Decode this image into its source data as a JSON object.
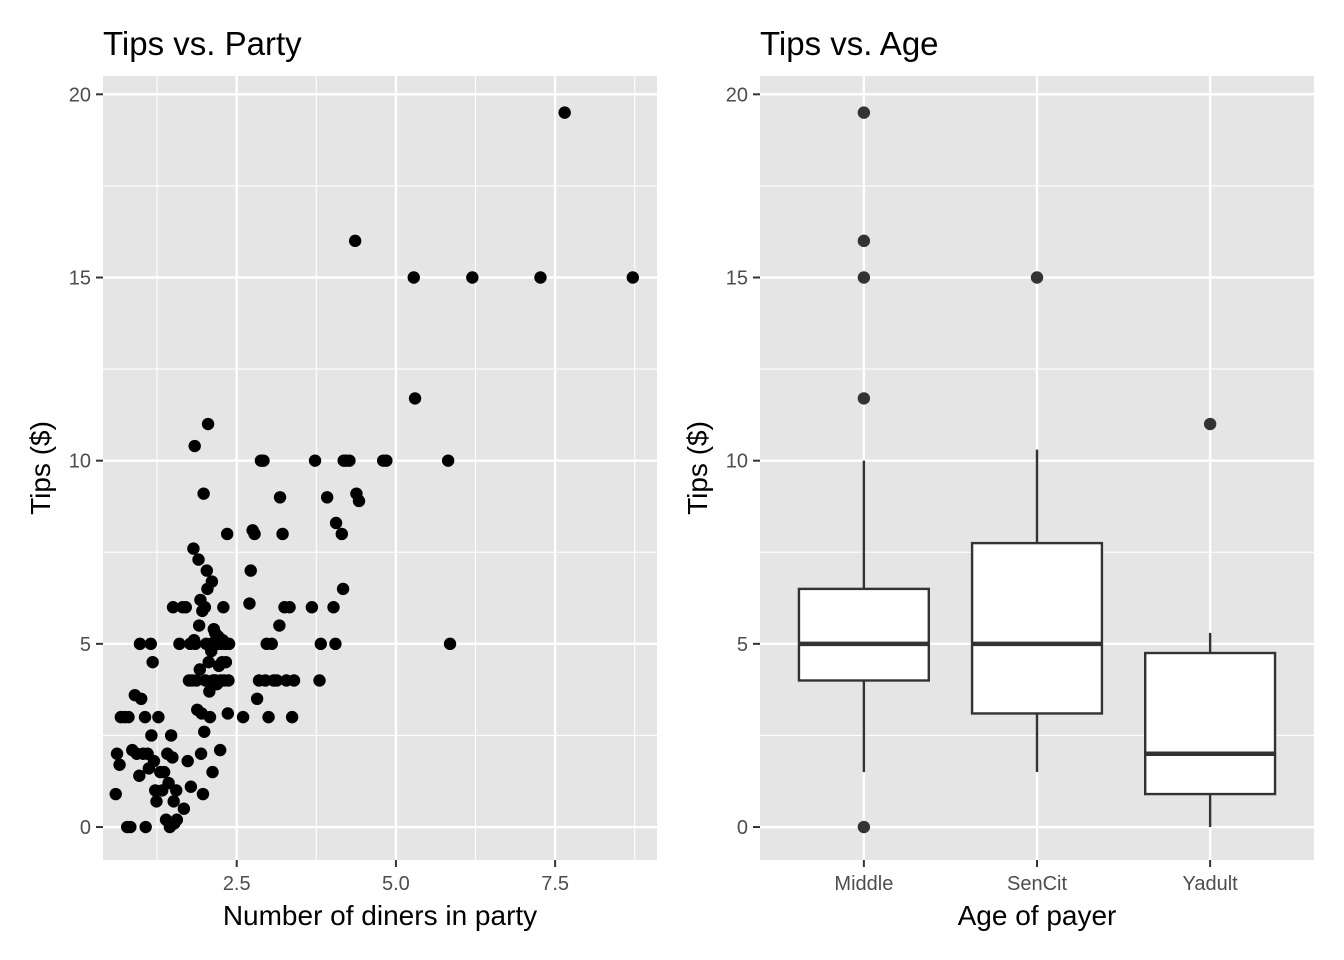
{
  "chart_data": [
    {
      "type": "scatter",
      "title": "Tips vs. Party",
      "xlabel": "Number of diners in party",
      "ylabel": "Tips ($)",
      "xlim": [
        0.4,
        9.1
      ],
      "ylim": [
        -0.9,
        20.5
      ],
      "xticks": [
        2.5,
        5.0,
        7.5
      ],
      "xtick_labels": [
        "2.5",
        "5.0",
        "7.5"
      ],
      "yticks": [
        0,
        5,
        10,
        15,
        20
      ],
      "ytick_labels": [
        "0",
        "5",
        "10",
        "15",
        "20"
      ],
      "grid": true,
      "legend": "none",
      "points": [
        [
          0.6,
          0.9
        ],
        [
          0.62,
          2.0
        ],
        [
          0.66,
          1.7
        ],
        [
          0.68,
          3.0
        ],
        [
          0.74,
          3.0
        ],
        [
          0.78,
          0.0
        ],
        [
          0.8,
          3.0
        ],
        [
          0.83,
          0.0
        ],
        [
          0.86,
          2.1
        ],
        [
          0.9,
          3.6
        ],
        [
          0.93,
          2.0
        ],
        [
          0.97,
          1.4
        ],
        [
          0.98,
          5.0
        ],
        [
          1.0,
          3.5
        ],
        [
          1.03,
          2.0
        ],
        [
          1.06,
          3.0
        ],
        [
          1.07,
          0.0
        ],
        [
          1.1,
          2.0
        ],
        [
          1.12,
          1.6
        ],
        [
          1.15,
          5.0
        ],
        [
          1.16,
          2.5
        ],
        [
          1.18,
          4.5
        ],
        [
          1.2,
          1.8
        ],
        [
          1.22,
          1.0
        ],
        [
          1.24,
          0.7
        ],
        [
          1.27,
          3.0
        ],
        [
          1.3,
          1.5
        ],
        [
          1.33,
          1.0
        ],
        [
          1.36,
          1.5
        ],
        [
          1.39,
          0.2
        ],
        [
          1.41,
          2.0
        ],
        [
          1.43,
          1.2
        ],
        [
          1.45,
          0.0
        ],
        [
          1.47,
          2.5
        ],
        [
          1.49,
          1.9
        ],
        [
          1.5,
          6.0
        ],
        [
          1.51,
          0.7
        ],
        [
          1.52,
          0.1
        ],
        [
          1.55,
          1.0
        ],
        [
          1.56,
          0.2
        ],
        [
          1.6,
          5.0
        ],
        [
          1.65,
          6.0
        ],
        [
          1.67,
          0.5
        ],
        [
          1.7,
          6.0
        ],
        [
          1.73,
          1.8
        ],
        [
          1.75,
          4.0
        ],
        [
          1.77,
          5.0
        ],
        [
          1.78,
          1.1
        ],
        [
          1.8,
          4.0
        ],
        [
          1.82,
          7.6
        ],
        [
          1.83,
          5.1
        ],
        [
          1.84,
          10.4
        ],
        [
          1.85,
          5.0
        ],
        [
          1.87,
          4.0
        ],
        [
          1.88,
          3.2
        ],
        [
          1.9,
          7.3
        ],
        [
          1.91,
          5.5
        ],
        [
          1.92,
          4.3
        ],
        [
          1.93,
          6.2
        ],
        [
          1.94,
          2.0
        ],
        [
          1.95,
          3.1
        ],
        [
          1.96,
          5.9
        ],
        [
          1.97,
          0.9
        ],
        [
          1.98,
          9.1
        ],
        [
          1.99,
          2.6
        ],
        [
          2.0,
          6.0
        ],
        [
          2.01,
          4.0
        ],
        [
          2.02,
          5.0
        ],
        [
          2.03,
          7.0
        ],
        [
          2.04,
          6.5
        ],
        [
          2.05,
          11.0
        ],
        [
          2.06,
          4.5
        ],
        [
          2.07,
          3.7
        ],
        [
          2.08,
          3.0
        ],
        [
          2.09,
          5.0
        ],
        [
          2.1,
          4.8
        ],
        [
          2.11,
          6.7
        ],
        [
          2.12,
          1.5
        ],
        [
          2.13,
          4.0
        ],
        [
          2.14,
          5.4
        ],
        [
          2.15,
          4.0
        ],
        [
          2.16,
          5.3
        ],
        [
          2.17,
          4.0
        ],
        [
          2.18,
          5.1
        ],
        [
          2.19,
          3.9
        ],
        [
          2.2,
          5.0
        ],
        [
          2.21,
          5.2
        ],
        [
          2.22,
          4.4
        ],
        [
          2.24,
          2.1
        ],
        [
          2.25,
          4.0
        ],
        [
          2.26,
          5.0
        ],
        [
          2.27,
          4.5
        ],
        [
          2.28,
          5.1
        ],
        [
          2.29,
          6.0
        ],
        [
          2.3,
          4.0
        ],
        [
          2.32,
          5.0
        ],
        [
          2.33,
          4.5
        ],
        [
          2.35,
          8.0
        ],
        [
          2.36,
          3.1
        ],
        [
          2.37,
          4.0
        ],
        [
          2.38,
          5.0
        ],
        [
          2.6,
          3.0
        ],
        [
          2.7,
          6.1
        ],
        [
          2.72,
          7.0
        ],
        [
          2.75,
          8.1
        ],
        [
          2.78,
          8.0
        ],
        [
          2.82,
          3.5
        ],
        [
          2.85,
          4.0
        ],
        [
          2.88,
          10.0
        ],
        [
          2.92,
          10.0
        ],
        [
          2.95,
          4.0
        ],
        [
          2.97,
          5.0
        ],
        [
          3.0,
          3.0
        ],
        [
          3.05,
          5.0
        ],
        [
          3.08,
          4.0
        ],
        [
          3.13,
          4.0
        ],
        [
          3.17,
          5.5
        ],
        [
          3.18,
          9.0
        ],
        [
          3.22,
          8.0
        ],
        [
          3.25,
          6.0
        ],
        [
          3.28,
          4.0
        ],
        [
          3.33,
          6.0
        ],
        [
          3.37,
          3.0
        ],
        [
          3.4,
          4.0
        ],
        [
          3.68,
          6.0
        ],
        [
          3.73,
          10.0
        ],
        [
          3.8,
          4.0
        ],
        [
          3.82,
          5.0
        ],
        [
          3.92,
          9.0
        ],
        [
          4.02,
          6.0
        ],
        [
          4.05,
          5.0
        ],
        [
          4.06,
          8.3
        ],
        [
          4.15,
          8.0
        ],
        [
          4.17,
          6.5
        ],
        [
          4.18,
          10.0
        ],
        [
          4.22,
          10.0
        ],
        [
          4.27,
          10.0
        ],
        [
          4.36,
          16.0
        ],
        [
          4.38,
          9.1
        ],
        [
          4.42,
          8.9
        ],
        [
          4.8,
          10.0
        ],
        [
          4.85,
          10.0
        ],
        [
          5.28,
          15.0
        ],
        [
          5.3,
          11.7
        ],
        [
          5.82,
          10.0
        ],
        [
          5.85,
          5.0
        ],
        [
          6.2,
          15.0
        ],
        [
          7.27,
          15.0
        ],
        [
          7.65,
          19.5
        ],
        [
          8.72,
          15.0
        ]
      ]
    },
    {
      "type": "box",
      "title": "Tips vs. Age",
      "xlabel": "Age of payer",
      "ylabel": "Tips ($)",
      "ylim": [
        -0.9,
        20.5
      ],
      "yticks": [
        0,
        5,
        10,
        15,
        20
      ],
      "ytick_labels": [
        "0",
        "5",
        "10",
        "15",
        "20"
      ],
      "categories": [
        "Middle",
        "SenCit",
        "Yadult"
      ],
      "grid": true,
      "legend": "none",
      "boxes": [
        {
          "category": "Middle",
          "whisker_low": 1.5,
          "q1": 4.0,
          "median": 5.0,
          "q3": 6.5,
          "whisker_high": 10.0,
          "outliers": [
            0,
            11.7,
            15,
            16,
            19.5
          ]
        },
        {
          "category": "SenCit",
          "whisker_low": 1.5,
          "q1": 3.1,
          "median": 5.0,
          "q3": 7.75,
          "whisker_high": 10.3,
          "outliers": [
            15
          ]
        },
        {
          "category": "Yadult",
          "whisker_low": 0.0,
          "q1": 0.9,
          "median": 2.0,
          "q3": 4.75,
          "whisker_high": 5.3,
          "outliers": [
            11
          ]
        }
      ]
    }
  ]
}
